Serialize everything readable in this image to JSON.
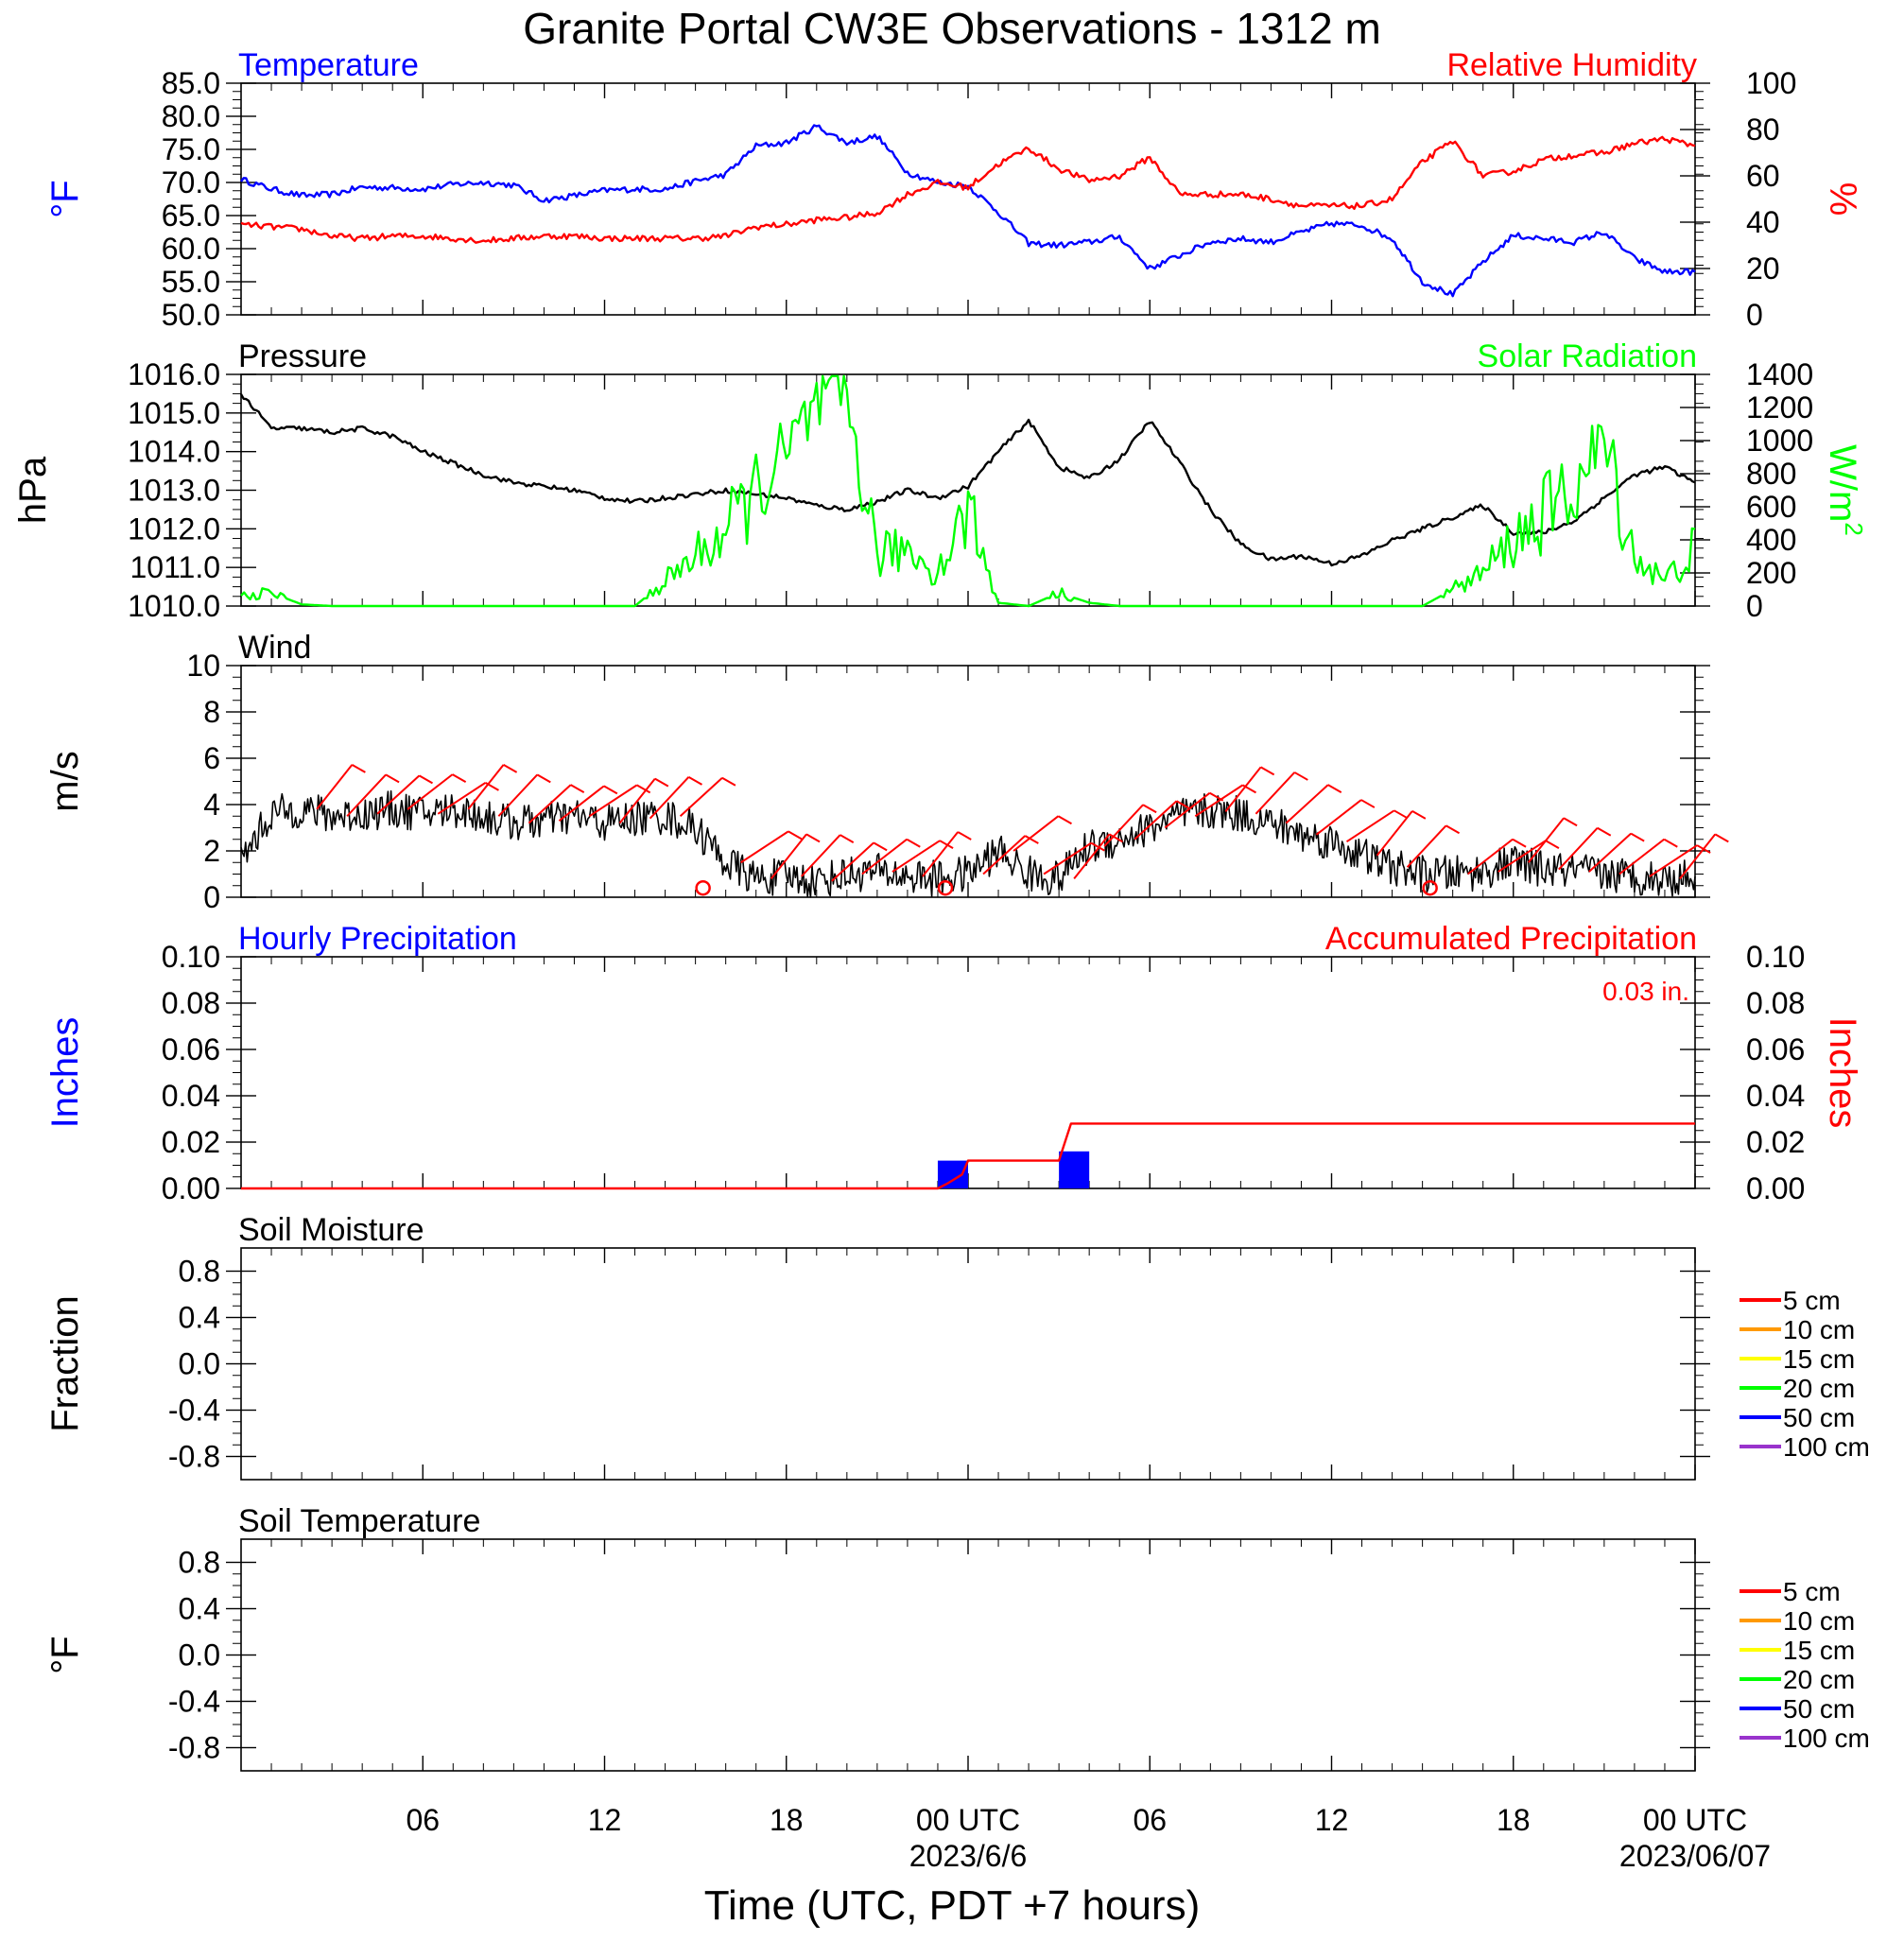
{
  "figure": {
    "title": "Granite Portal CW3E Observations - 1312 m",
    "xlabel": "Time (UTC, PDT +7 hours)",
    "xticks": [
      "06",
      "12",
      "18",
      "00 UTC",
      "06",
      "12",
      "18",
      "00 UTC"
    ],
    "date_labels": [
      "2023/6/6",
      "2023/06/07"
    ]
  },
  "colors": {
    "temperature": "#0000ff",
    "humidity": "#ff0000",
    "pressure": "#000000",
    "solar": "#00ff00",
    "wind": "#000000",
    "barbs": "#ff0000",
    "hourly_precip": "#0000ff",
    "accum_precip": "#ff0000",
    "soil_5cm": "#ff0000",
    "soil_10cm": "#ff9900",
    "soil_15cm": "#ffff00",
    "soil_20cm": "#00ff00",
    "soil_50cm": "#0000ff",
    "soil_100cm": "#9933cc"
  },
  "chart_data": [
    {
      "type": "line",
      "title_left": "Temperature",
      "title_right": "Relative Humidity",
      "ylabel_left": "°F",
      "ylabel_right": "%",
      "ylim_left": [
        50,
        85
      ],
      "ylim_right": [
        0,
        100
      ],
      "yticks_left": [
        "50.0",
        "55.0",
        "60.0",
        "65.0",
        "70.0",
        "75.0",
        "80.0",
        "85.0"
      ],
      "yticks_right": [
        "0",
        "20",
        "40",
        "60",
        "80",
        "100"
      ],
      "x_hours": [
        1,
        2,
        3,
        4,
        5,
        6,
        7,
        8,
        9,
        10,
        11,
        12,
        13,
        14,
        15,
        16,
        17,
        18,
        19,
        20,
        21,
        22,
        23,
        24,
        25,
        26,
        27,
        28,
        29,
        30,
        31,
        32,
        33,
        34,
        35,
        36,
        37,
        38,
        39,
        40,
        41,
        42,
        43,
        44,
        45,
        46,
        47,
        48,
        49
      ],
      "series": [
        {
          "name": "Temperature",
          "axis": "left",
          "values": [
            70.5,
            69.0,
            68.0,
            68.2,
            69.3,
            69.2,
            69.0,
            69.7,
            70.0,
            69.6,
            67.3,
            68.0,
            68.8,
            69.0,
            69.0,
            70.2,
            71.2,
            75.5,
            76.0,
            78.5,
            76.0,
            77.0,
            71.5,
            70.0,
            69.5,
            65.5,
            60.8,
            60.5,
            61.0,
            61.8,
            57.0,
            59.0,
            61.0,
            61.5,
            61.0,
            62.5,
            63.8,
            63.5,
            61.5,
            55.0,
            53.0,
            58.0,
            62.0,
            61.5,
            61.0,
            62.5,
            58.5,
            56.5,
            56.5
          ]
        },
        {
          "name": "Relative Humidity",
          "axis": "right",
          "values": [
            39,
            38,
            37,
            34,
            33,
            34,
            34,
            33,
            32,
            33,
            34,
            34,
            33,
            33,
            33,
            33,
            34,
            38,
            39,
            41,
            42,
            44,
            52,
            57,
            55,
            65,
            72,
            63,
            58,
            60,
            68,
            52,
            52,
            52,
            50,
            47,
            47,
            47,
            50,
            66,
            75,
            60,
            62,
            67,
            69,
            70,
            74,
            76,
            73
          ]
        }
      ]
    },
    {
      "type": "line",
      "title_left": "Pressure",
      "title_right": "Solar Radiation",
      "ylabel_left": "hPa",
      "ylabel_right": "W/m",
      "ylabel_right_sup": "2",
      "ylim_left": [
        1010,
        1016
      ],
      "ylim_right": [
        0,
        1400
      ],
      "yticks_left": [
        "1010.0",
        "1011.0",
        "1012.0",
        "1013.0",
        "1014.0",
        "1015.0",
        "1016.0"
      ],
      "yticks_right": [
        "0",
        "200",
        "400",
        "600",
        "800",
        "1000",
        "1200",
        "1400"
      ],
      "series": [
        {
          "name": "Pressure",
          "axis": "left",
          "values": [
            1015.5,
            1014.6,
            1014.6,
            1014.5,
            1014.6,
            1014.4,
            1014.0,
            1013.7,
            1013.4,
            1013.2,
            1013.1,
            1013.0,
            1012.8,
            1012.7,
            1012.8,
            1012.9,
            1013.0,
            1012.9,
            1012.8,
            1012.6,
            1012.5,
            1012.7,
            1013.0,
            1012.8,
            1013.1,
            1014.0,
            1014.8,
            1013.6,
            1013.3,
            1013.8,
            1014.8,
            1013.7,
            1012.5,
            1011.6,
            1011.2,
            1011.3,
            1011.1,
            1011.3,
            1011.7,
            1012.0,
            1012.3,
            1012.6,
            1011.9,
            1011.9,
            1012.2,
            1012.8,
            1013.4,
            1013.6,
            1013.2
          ]
        },
        {
          "name": "Solar Radiation",
          "axis": "right",
          "values": [
            60,
            80,
            10,
            0,
            0,
            0,
            0,
            0,
            0,
            0,
            0,
            0,
            0,
            0,
            150,
            300,
            450,
            700,
            900,
            1200,
            1250,
            300,
            350,
            200,
            600,
            20,
            0,
            80,
            20,
            0,
            0,
            0,
            0,
            0,
            0,
            0,
            0,
            0,
            0,
            0,
            100,
            200,
            400,
            550,
            700,
            1000,
            300,
            150,
            350
          ]
        }
      ]
    },
    {
      "type": "line",
      "title_left": "Wind",
      "ylabel_left": "m/s",
      "ylim_left": [
        0,
        10
      ],
      "yticks_left": [
        "0",
        "2",
        "4",
        "6",
        "8",
        "10"
      ],
      "series": [
        {
          "name": "Wind",
          "axis": "left",
          "values": [
            1.6,
            3.6,
            3.8,
            3.5,
            3.6,
            3.8,
            3.6,
            3.8,
            3.5,
            3.2,
            3.3,
            3.5,
            3.2,
            3.4,
            3.5,
            3.0,
            1.5,
            0.8,
            0.9,
            0.7,
            1.0,
            1.1,
            0.9,
            0.8,
            1.0,
            2.0,
            1.0,
            0.8,
            2.2,
            2.5,
            3.0,
            3.5,
            3.7,
            3.6,
            3.2,
            2.7,
            2.4,
            1.8,
            1.3,
            1.0,
            1.0,
            1.1,
            1.5,
            1.2,
            1.1,
            1.0,
            0.9,
            0.8,
            0.9
          ]
        }
      ],
      "barb_hours": [
        3,
        4,
        5,
        6,
        7,
        8,
        9,
        10,
        11,
        12,
        13,
        14,
        15,
        16,
        17,
        18,
        19,
        20,
        21,
        22,
        23,
        24,
        25,
        26,
        27,
        28,
        29,
        30,
        31,
        32,
        33,
        34,
        35,
        36,
        37,
        38,
        39,
        40,
        41,
        42,
        43,
        44,
        45,
        46,
        47,
        48
      ],
      "calm_hours": [
        16,
        24,
        40
      ]
    },
    {
      "type": "bar",
      "title_left": "Hourly Precipitation",
      "title_right": "Accumulated Precipitation",
      "annotation": "0.03 in.",
      "ylabel_left": "Inches",
      "ylabel_right": "Inches",
      "ylim_left": [
        0,
        0.1
      ],
      "ylim_right": [
        0,
        0.1
      ],
      "yticks_left": [
        "0.00",
        "0.02",
        "0.04",
        "0.06",
        "0.08",
        "0.10"
      ],
      "yticks_right": [
        "0.00",
        "0.02",
        "0.04",
        "0.06",
        "0.08",
        "0.10"
      ],
      "hourly": [
        {
          "hour": 24,
          "value": 0.012
        },
        {
          "hour": 28,
          "value": 0.016
        }
      ],
      "accumulated": {
        "x": [
          1,
          24,
          24.3,
          24.8,
          25,
          28,
          28.2,
          28.4,
          49
        ],
        "values": [
          0,
          0,
          0.002,
          0.006,
          0.012,
          0.012,
          0.02,
          0.028,
          0.028
        ]
      }
    },
    {
      "type": "line",
      "title_left": "Soil Moisture",
      "ylabel_left": "Fraction",
      "ylim_left": [
        -1,
        1
      ],
      "yticks_left": [
        "-0.8",
        "-0.4",
        "0.0",
        "0.4",
        "0.8"
      ],
      "legend": [
        "5 cm",
        "10 cm",
        "15 cm",
        "20 cm",
        "50 cm",
        "100 cm"
      ],
      "series": []
    },
    {
      "type": "line",
      "title_left": "Soil Temperature",
      "ylabel_left": "°F",
      "ylim_left": [
        -1,
        1
      ],
      "yticks_left": [
        "-0.8",
        "-0.4",
        "0.0",
        "0.4",
        "0.8"
      ],
      "legend": [
        "5 cm",
        "10 cm",
        "15 cm",
        "20 cm",
        "50 cm",
        "100 cm"
      ],
      "series": []
    }
  ]
}
